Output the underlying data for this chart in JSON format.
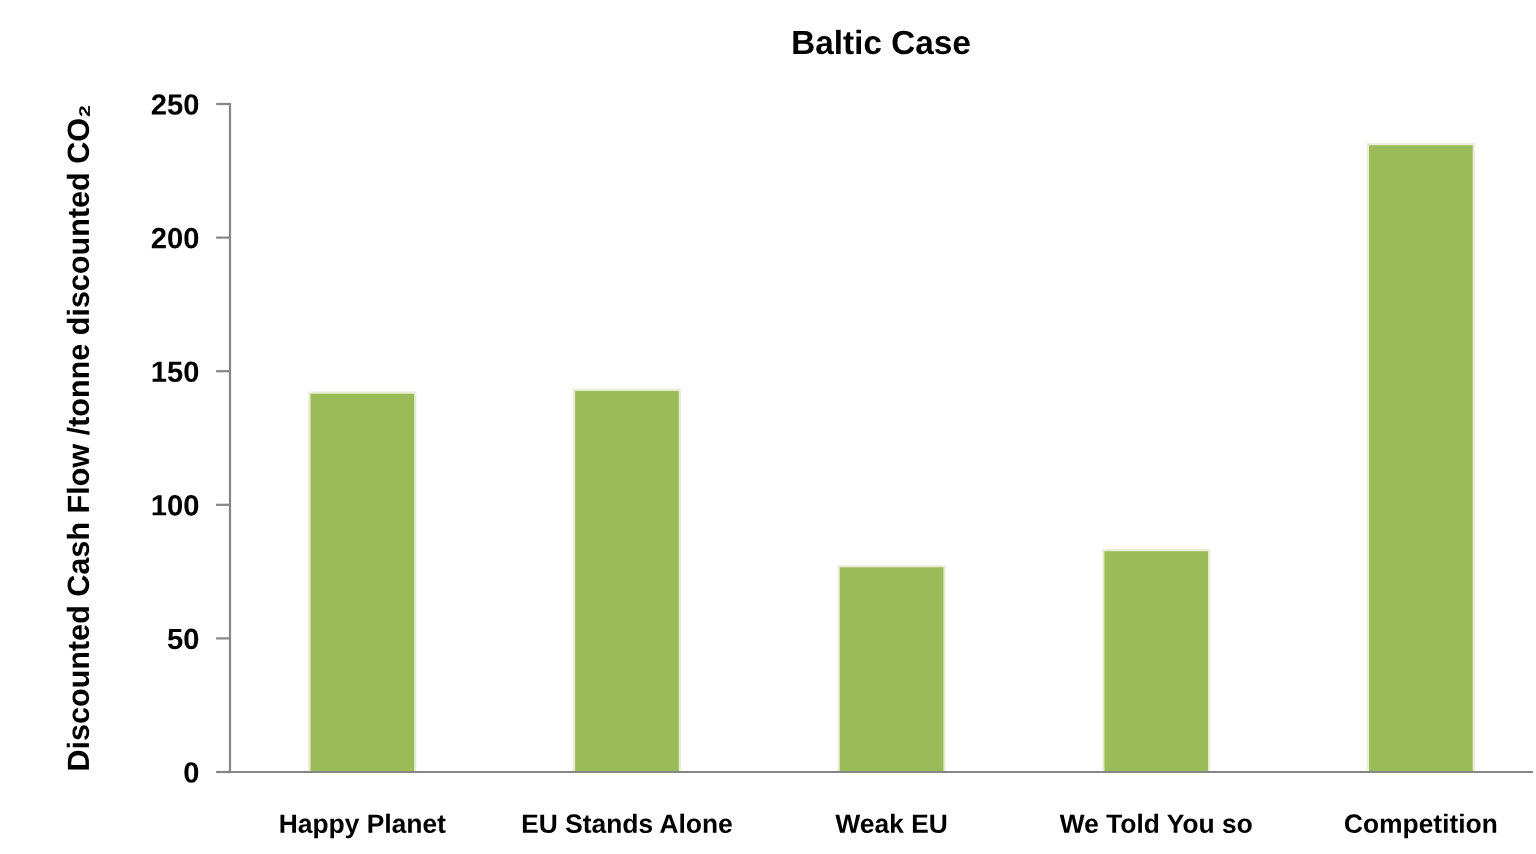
{
  "chart_data": {
    "type": "bar",
    "title": "Baltic Case",
    "ylabel": "Discounted Cash Flow /tonne discounted CO₂",
    "categories": [
      "Happy Planet",
      "EU Stands Alone",
      "Weak EU",
      "We Told You so",
      "Competition"
    ],
    "values": [
      142,
      143,
      77,
      83,
      235
    ],
    "color": "#9bbb59",
    "ylim": [
      0,
      250
    ],
    "yticks": [
      0,
      50,
      100,
      150,
      200,
      250
    ],
    "grid": false,
    "legend": false
  }
}
